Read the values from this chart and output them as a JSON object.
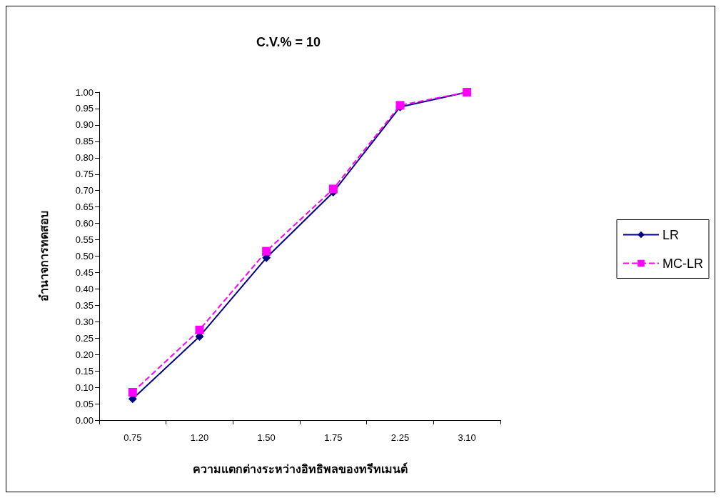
{
  "chart_data": {
    "type": "line",
    "title": "C.V.% = 10",
    "xlabel": "ความแตกต่างระหว่างอิทธิพลของทรีทเมนต์",
    "ylabel": "อำนาจการทดสอบ",
    "categories": [
      "0.75",
      "1.20",
      "1.50",
      "1.75",
      "2.25",
      "3.10"
    ],
    "series": [
      {
        "name": "LR",
        "color": "#000080",
        "marker": "diamond",
        "line_style": "solid",
        "values": [
          0.065,
          0.255,
          0.495,
          0.695,
          0.955,
          1.0
        ]
      },
      {
        "name": "MC-LR",
        "color": "#ff00ff",
        "marker": "square",
        "line_style": "dashed",
        "values": [
          0.085,
          0.275,
          0.515,
          0.705,
          0.96,
          1.0
        ]
      }
    ],
    "ylim": [
      0,
      1
    ],
    "yticks": [
      {
        "value": 0,
        "label": "0.00"
      },
      {
        "value": 0.05,
        "label": "0.05"
      },
      {
        "value": 0.1,
        "label": "0.10"
      },
      {
        "value": 0.15,
        "label": "0.15"
      },
      {
        "value": 0.2,
        "label": "0.20"
      },
      {
        "value": 0.25,
        "label": "0.25"
      },
      {
        "value": 0.3,
        "label": "0.30"
      },
      {
        "value": 0.35,
        "label": "0.35"
      },
      {
        "value": 0.4,
        "label": "0.40"
      },
      {
        "value": 0.45,
        "label": "0.45"
      },
      {
        "value": 0.5,
        "label": "0.50"
      },
      {
        "value": 0.55,
        "label": "0.55"
      },
      {
        "value": 0.6,
        "label": "0.60"
      },
      {
        "value": 0.65,
        "label": "0.65"
      },
      {
        "value": 0.7,
        "label": "0.70"
      },
      {
        "value": 0.75,
        "label": "0.75"
      },
      {
        "value": 0.8,
        "label": "0.80"
      },
      {
        "value": 0.85,
        "label": "0.85"
      },
      {
        "value": 0.9,
        "label": "0.90"
      },
      {
        "value": 0.95,
        "label": "0.95"
      },
      {
        "value": 1,
        "label": "1.00"
      }
    ],
    "grid": false,
    "legend": "right"
  }
}
